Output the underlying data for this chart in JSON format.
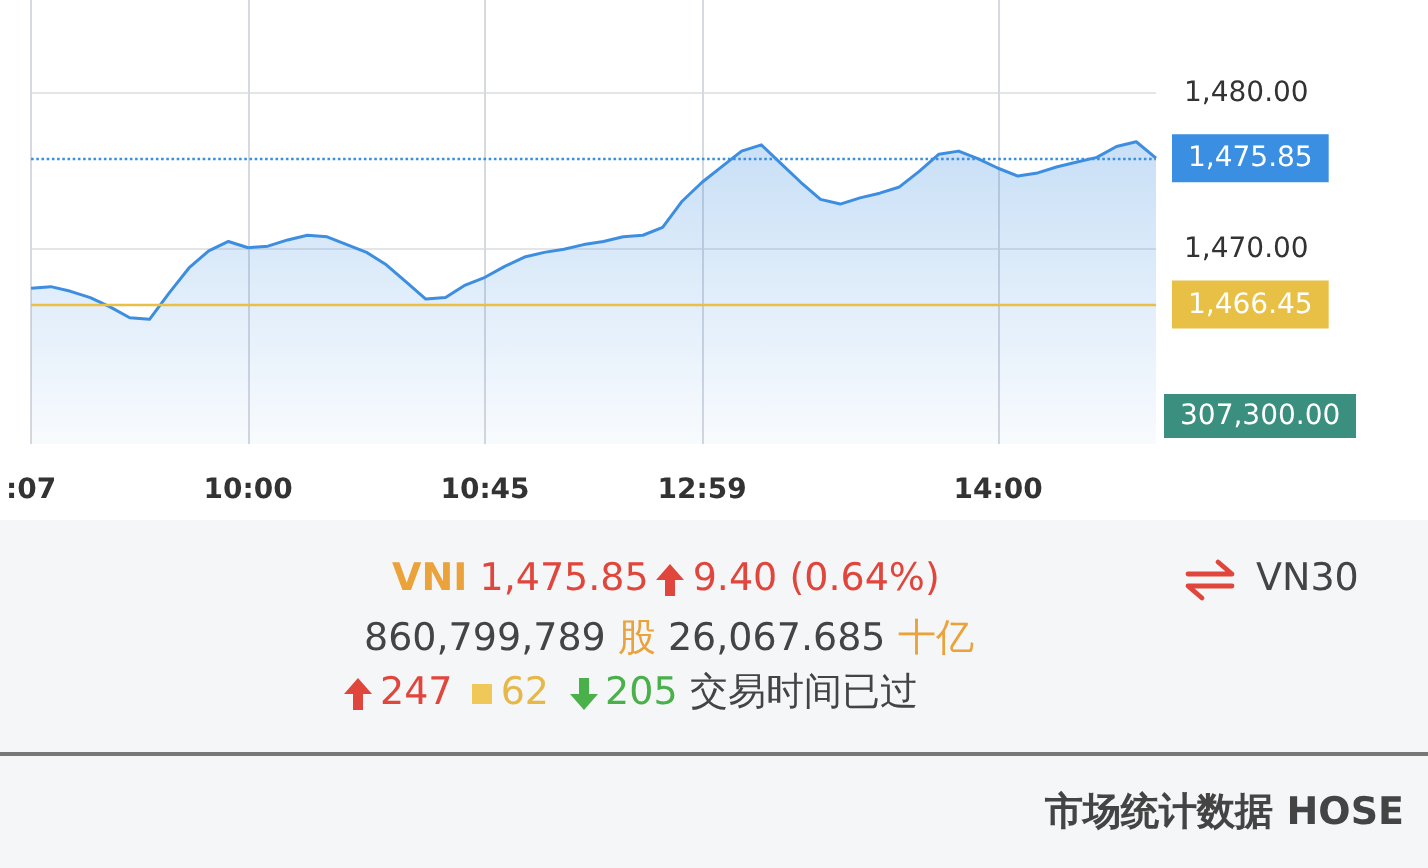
{
  "chart_data": {
    "type": "area",
    "categories": [
      ":07",
      null,
      null,
      null,
      null,
      null,
      null,
      null,
      null,
      null,
      null,
      "10:00",
      null,
      null,
      null,
      null,
      null,
      null,
      null,
      null,
      null,
      null,
      null,
      "10:45",
      null,
      null,
      null,
      null,
      null,
      null,
      null,
      null,
      null,
      null,
      "12:59",
      null,
      null,
      null,
      null,
      null,
      null,
      null,
      null,
      null,
      null,
      null,
      null,
      null,
      null,
      "14:00",
      null,
      null,
      null,
      null,
      null,
      null,
      null,
      null
    ],
    "series": [
      {
        "color": "#3d8ee0",
        "values": [
          1467.5,
          1467.6,
          1467.3,
          1466.9,
          1466.3,
          1465.6,
          1465.5,
          1467.2,
          1468.8,
          1469.9,
          1470.5,
          1470.1,
          1470.2,
          1470.6,
          1470.9,
          1470.8,
          1470.3,
          1469.8,
          1469.0,
          1467.9,
          1466.8,
          1466.9,
          1467.7,
          1468.2,
          1468.9,
          1469.5,
          1469.8,
          1470.0,
          1470.3,
          1470.5,
          1470.8,
          1470.9,
          1471.4,
          1473.1,
          1474.3,
          1475.3,
          1476.3,
          1476.7,
          1475.5,
          1474.3,
          1473.2,
          1472.9,
          1473.3,
          1473.6,
          1474.0,
          1475.0,
          1476.1,
          1476.3,
          1475.8,
          1475.2,
          1474.7,
          1474.9,
          1475.3,
          1475.6,
          1475.9,
          1476.6,
          1476.9,
          1475.85
        ]
      }
    ],
    "ylim": [
      1457.5,
      1486
    ],
    "yticks": [
      {
        "value": 1480,
        "label": "1,480.00"
      },
      {
        "value": 1470,
        "label": "1,470.00"
      }
    ],
    "ref_lines": [
      {
        "axis": "y",
        "value": 1475.85,
        "label": "1,475.85",
        "color": "#3b8fe3",
        "line_style": "dotted"
      },
      {
        "axis": "y",
        "value": 1466.45,
        "label": "1,466.45",
        "color": "#e9c046",
        "line_style": "solid"
      }
    ],
    "grid": true,
    "annotations": [
      "307,300.00",
      "VNI",
      "1,475.85",
      "9.40",
      "(0.64%)",
      "VN30",
      "860,799,789",
      "股",
      "26,067.685",
      "十亿",
      "247",
      "62",
      "205",
      "交易时间已过",
      "市场统计数据 HOSE"
    ]
  }
}
